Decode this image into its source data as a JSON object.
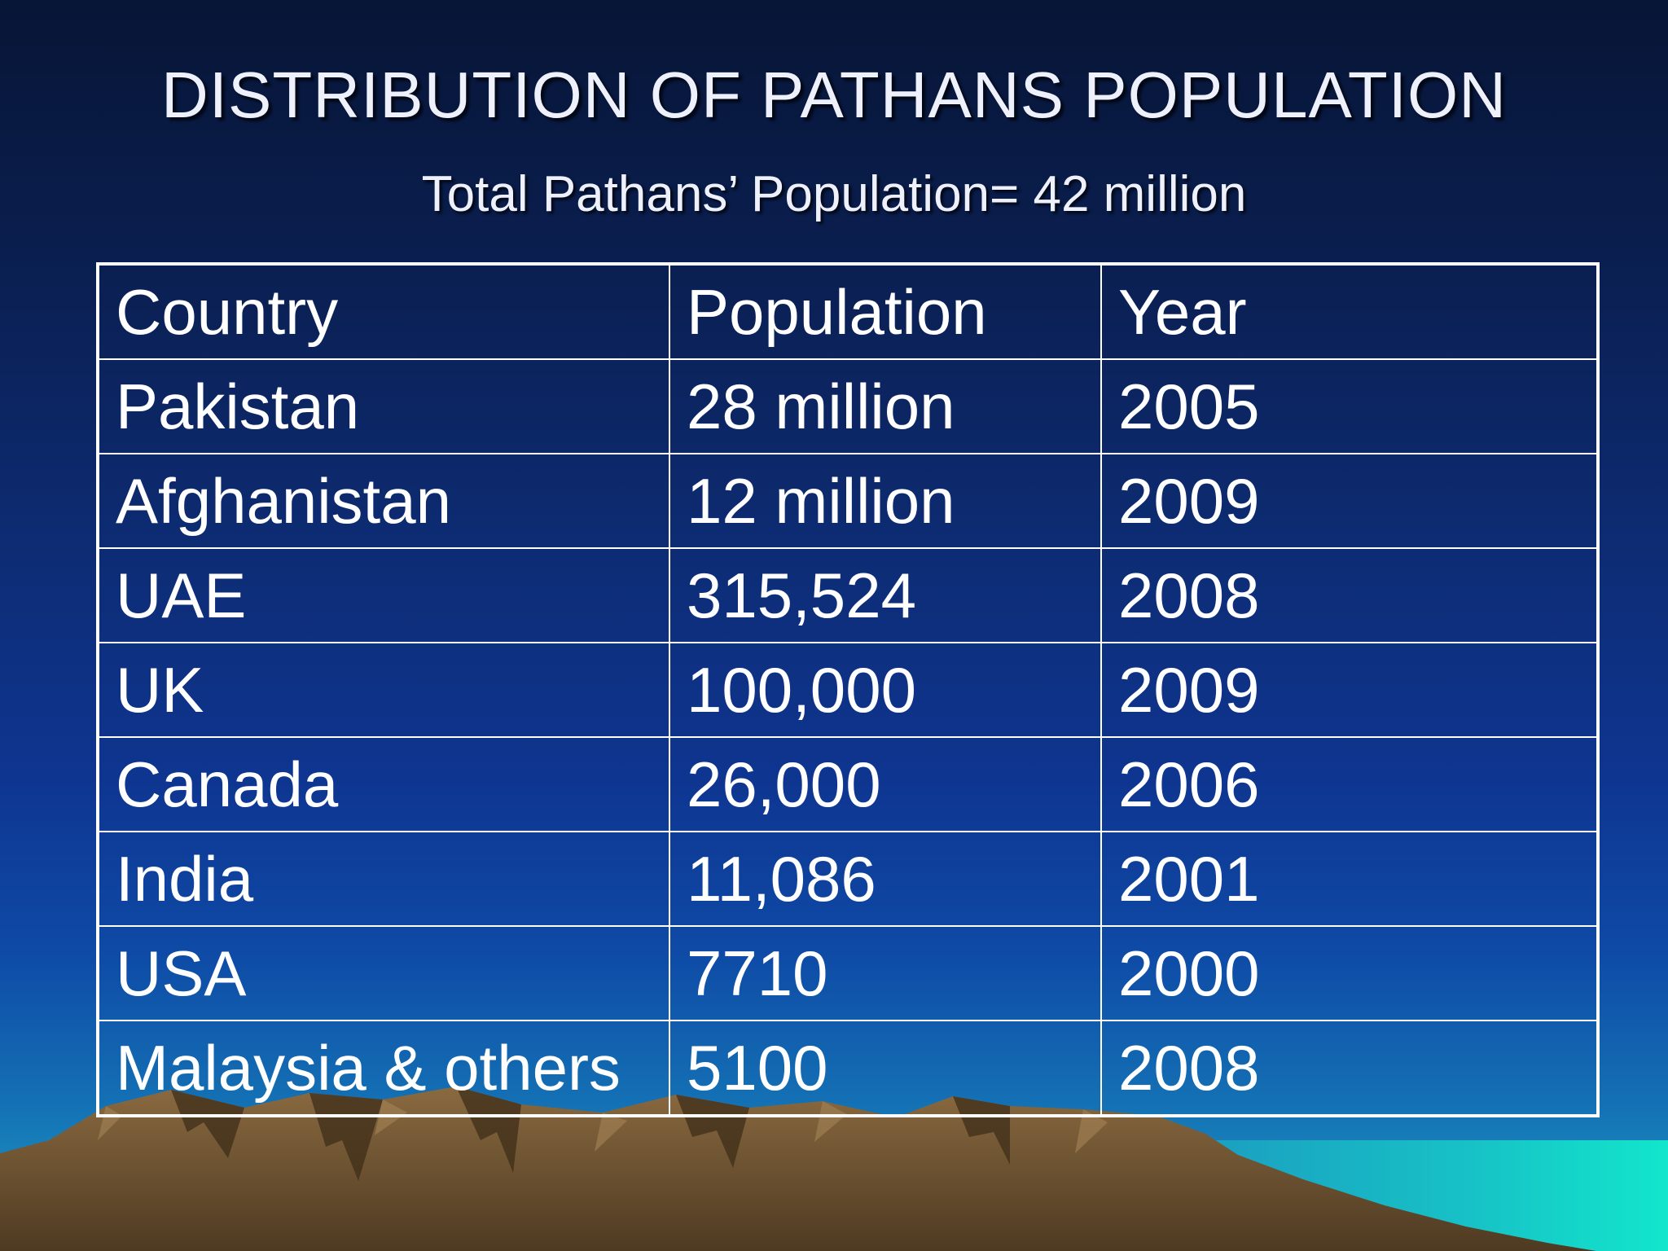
{
  "slide": {
    "title": "DISTRIBUTION OF PATHANS POPULATION",
    "subtitle": "Total Pathans’ Population= 42 million"
  },
  "table": {
    "headers": [
      "Country",
      "Population",
      "Year"
    ],
    "rows": [
      {
        "country": "Pakistan",
        "population": "28 million",
        "year": "2005"
      },
      {
        "country": "Afghanistan",
        "population": "12 million",
        "year": "2009"
      },
      {
        "country": "UAE",
        "population": "315,524",
        "year": "2008"
      },
      {
        "country": "UK",
        "population": "100,000",
        "year": "2009"
      },
      {
        "country": "Canada",
        "population": "26,000",
        "year": "2006"
      },
      {
        "country": "India",
        "population": "11,086",
        "year": "2001"
      },
      {
        "country": "USA",
        "population": "7710",
        "year": "2000"
      },
      {
        "country": "Malaysia & others",
        "population": "5100",
        "year": "2008"
      }
    ]
  },
  "colors": {
    "background_top": "#071536",
    "background_bottom": "#1fa0c4",
    "text": "#ffffff",
    "mountains": "#6b5232",
    "sea": "#14d8c8"
  }
}
